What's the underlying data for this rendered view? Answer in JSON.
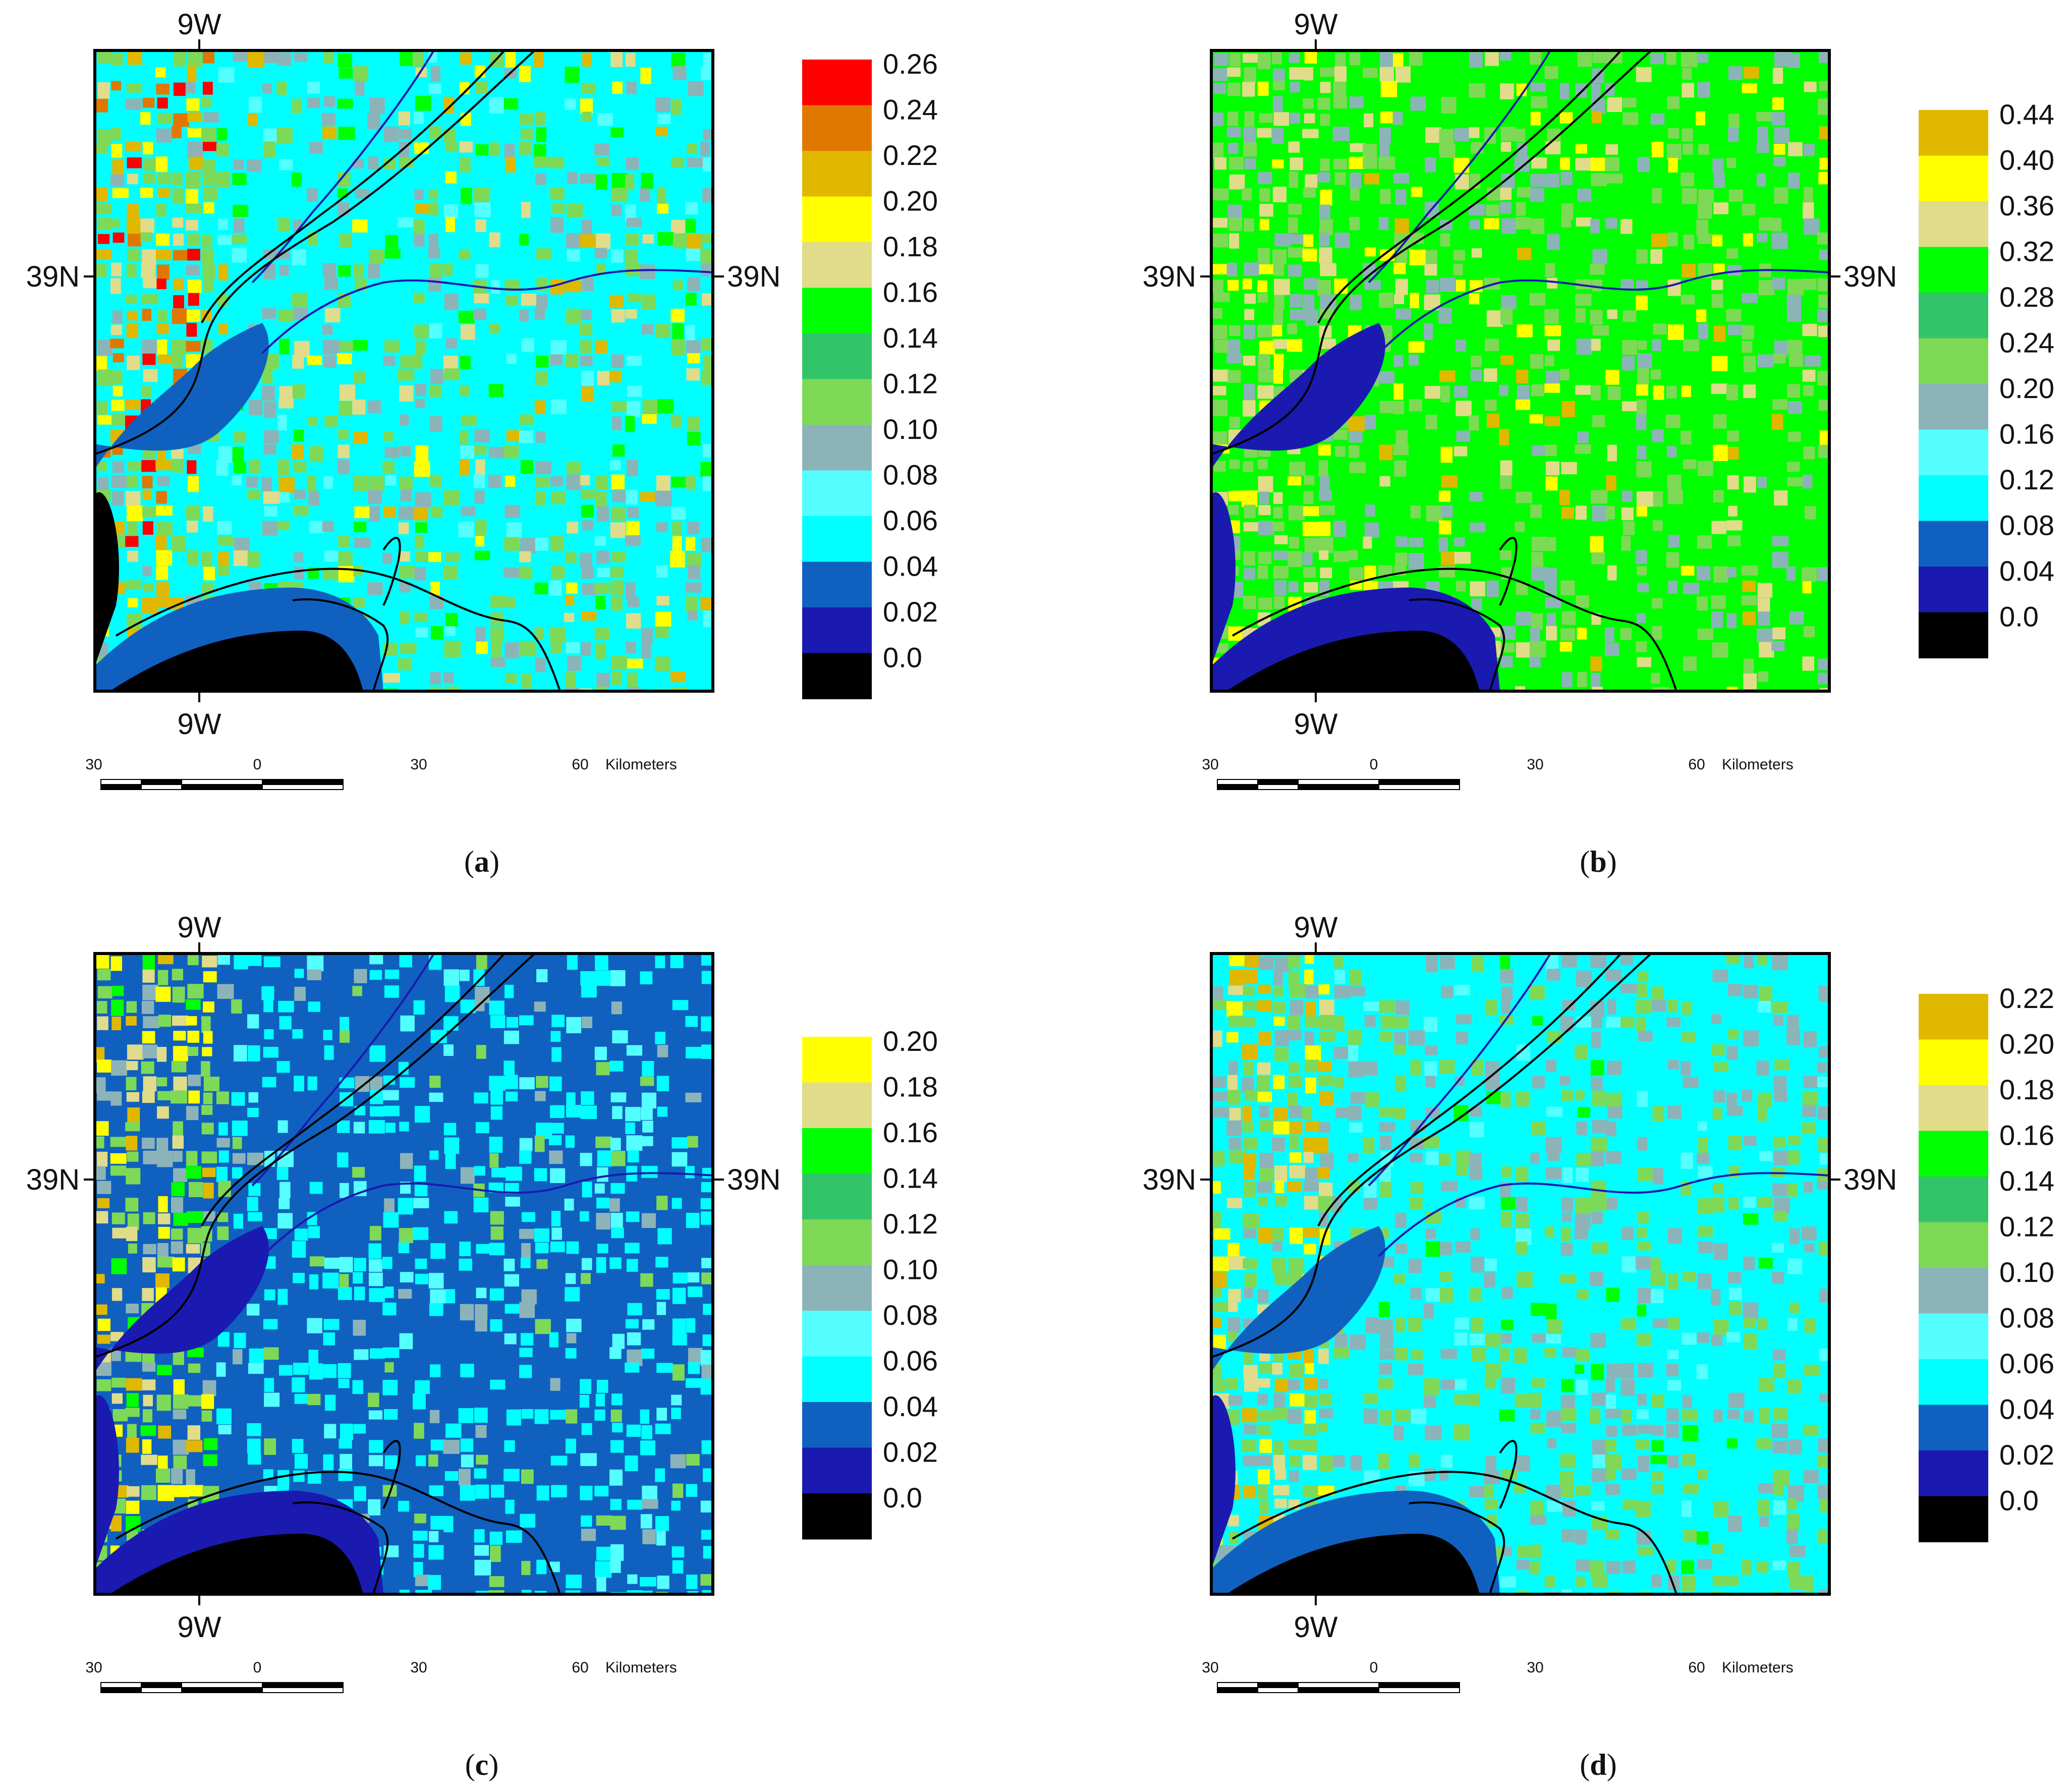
{
  "colors": {
    "black": "#000000",
    "navy": "#1a1ab0",
    "blue": "#1060c0",
    "cyan": "#00ffff",
    "light_cyan": "#55ffff",
    "gray_teal": "#8cb4b8",
    "light_green": "#7ed957",
    "green": "#33c46a",
    "bright_green": "#00ff00",
    "khaki": "#e0dc8a",
    "yellow": "#ffff00",
    "gold": "#e0b800",
    "orange": "#e07800",
    "red": "#ff0000",
    "boundary": "#000000",
    "river": "#1a1ab0"
  },
  "panels": [
    {
      "id": "a",
      "caption": "a",
      "lon_label": "9W",
      "lat_label": "39N",
      "scale_ticks": [
        "30",
        "0",
        "30",
        "60"
      ],
      "scale_unit": "Kilometers",
      "base_color": "cyan",
      "water_color": "blue",
      "mix": [
        [
          "gray_teal",
          0.3
        ],
        [
          "light_green",
          0.3
        ],
        [
          "bright_green",
          0.1
        ],
        [
          "light_cyan",
          0.1
        ],
        [
          "khaki",
          0.08
        ],
        [
          "yellow",
          0.06
        ],
        [
          "gold",
          0.06
        ]
      ],
      "west_mix": [
        [
          "light_green",
          0.3
        ],
        [
          "gold",
          0.15
        ],
        [
          "yellow",
          0.15
        ],
        [
          "orange",
          0.12
        ],
        [
          "red",
          0.08
        ],
        [
          "khaki",
          0.1
        ],
        [
          "gray_teal",
          0.1
        ]
      ],
      "legend": {
        "labels": [
          "0.26",
          "0.24",
          "0.22",
          "0.20",
          "0.18",
          "0.16",
          "0.14",
          "0.12",
          "0.10",
          "0.08",
          "0.06",
          "0.04",
          "0.02",
          "0.0"
        ],
        "colors": [
          "red",
          "orange",
          "gold",
          "yellow",
          "khaki",
          "bright_green",
          "green",
          "light_green",
          "gray_teal",
          "light_cyan",
          "cyan",
          "blue",
          "navy",
          "black"
        ]
      }
    },
    {
      "id": "b",
      "caption": "b",
      "lon_label": "9W",
      "lat_label": "39N",
      "scale_ticks": [
        "30",
        "0",
        "30",
        "60"
      ],
      "scale_unit": "Kilometers",
      "base_color": "bright_green",
      "water_color": "navy",
      "mix": [
        [
          "light_green",
          0.4
        ],
        [
          "gray_teal",
          0.3
        ],
        [
          "khaki",
          0.15
        ],
        [
          "yellow",
          0.1
        ],
        [
          "gold",
          0.05
        ]
      ],
      "west_mix": [
        [
          "light_green",
          0.35
        ],
        [
          "khaki",
          0.25
        ],
        [
          "yellow",
          0.2
        ],
        [
          "gray_teal",
          0.2
        ]
      ],
      "legend": {
        "labels": [
          "0.44",
          "0.40",
          "0.36",
          "0.32",
          "0.28",
          "0.24",
          "0.20",
          "0.16",
          "0.12",
          "0.08",
          "0.04",
          "0.0"
        ],
        "colors": [
          "gold",
          "yellow",
          "khaki",
          "bright_green",
          "green",
          "light_green",
          "gray_teal",
          "light_cyan",
          "cyan",
          "blue",
          "navy",
          "black"
        ]
      }
    },
    {
      "id": "c",
      "caption": "c",
      "lon_label": "9W",
      "lat_label": "39N",
      "scale_ticks": [
        "30",
        "0",
        "30",
        "60"
      ],
      "scale_unit": "Kilometers",
      "base_color": "blue",
      "water_color": "navy",
      "mix": [
        [
          "cyan",
          0.6
        ],
        [
          "light_cyan",
          0.2
        ],
        [
          "gray_teal",
          0.1
        ],
        [
          "light_green",
          0.1
        ]
      ],
      "west_mix": [
        [
          "light_green",
          0.3
        ],
        [
          "yellow",
          0.2
        ],
        [
          "khaki",
          0.15
        ],
        [
          "gold",
          0.1
        ],
        [
          "gray_teal",
          0.15
        ],
        [
          "bright_green",
          0.1
        ]
      ],
      "legend": {
        "labels": [
          "0.20",
          "0.18",
          "0.16",
          "0.14",
          "0.12",
          "0.10",
          "0.08",
          "0.06",
          "0.04",
          "0.02",
          "0.0"
        ],
        "colors": [
          "yellow",
          "khaki",
          "bright_green",
          "green",
          "light_green",
          "gray_teal",
          "light_cyan",
          "cyan",
          "blue",
          "navy",
          "black"
        ]
      }
    },
    {
      "id": "d",
      "caption": "d",
      "lon_label": "9W",
      "lat_label": "39N",
      "scale_ticks": [
        "30",
        "0",
        "30",
        "60"
      ],
      "scale_unit": "Kilometers",
      "base_color": "cyan",
      "water_color": "blue",
      "mix": [
        [
          "gray_teal",
          0.45
        ],
        [
          "light_green",
          0.4
        ],
        [
          "light_cyan",
          0.1
        ],
        [
          "bright_green",
          0.05
        ]
      ],
      "west_mix": [
        [
          "light_green",
          0.3
        ],
        [
          "gold",
          0.15
        ],
        [
          "yellow",
          0.2
        ],
        [
          "khaki",
          0.15
        ],
        [
          "gray_teal",
          0.2
        ]
      ],
      "legend": {
        "labels": [
          "0.22",
          "0.20",
          "0.18",
          "0.16",
          "0.14",
          "0.12",
          "0.10",
          "0.08",
          "0.06",
          "0.04",
          "0.02",
          "0.0"
        ],
        "colors": [
          "gold",
          "yellow",
          "khaki",
          "bright_green",
          "green",
          "light_green",
          "gray_teal",
          "light_cyan",
          "cyan",
          "blue",
          "navy",
          "black"
        ]
      }
    }
  ]
}
